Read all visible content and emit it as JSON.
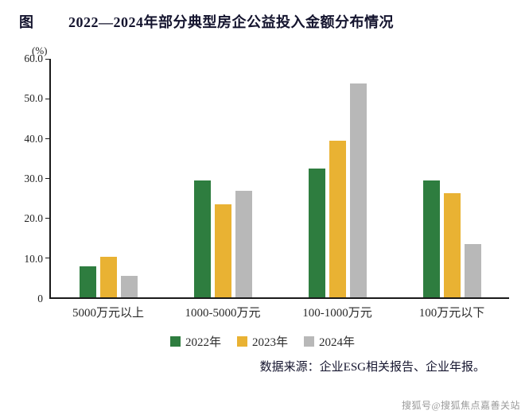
{
  "page": {
    "figure_label": "图",
    "title": "2022—2024年部分典型房企公益投入金额分布情况",
    "source": "数据来源：企业ESG相关报告、企业年报。",
    "watermark": "搜狐号@搜狐焦点嘉善关站"
  },
  "chart_data": {
    "type": "bar",
    "unit_label": "(%)",
    "categories": [
      "5000万元以上",
      "1000-5000万元",
      "100-1000万元",
      "100万元以下"
    ],
    "series": [
      {
        "name": "2022年",
        "color": "#2e7d3f",
        "values": [
          7.9,
          29.5,
          32.4,
          29.5
        ]
      },
      {
        "name": "2023年",
        "color": "#e9b233",
        "values": [
          10.3,
          23.5,
          39.5,
          26.2
        ]
      },
      {
        "name": "2024年",
        "color": "#b8b8b8",
        "values": [
          5.4,
          26.9,
          53.9,
          13.4
        ]
      }
    ],
    "ylim": [
      0,
      60
    ],
    "yticks": [
      "0",
      "10.0",
      "20.0",
      "30.0",
      "40.0",
      "50.0",
      "60.0"
    ],
    "ytick_values": [
      0,
      10,
      20,
      30,
      40,
      50,
      60
    ],
    "grid": false,
    "legend_position": "bottom"
  }
}
